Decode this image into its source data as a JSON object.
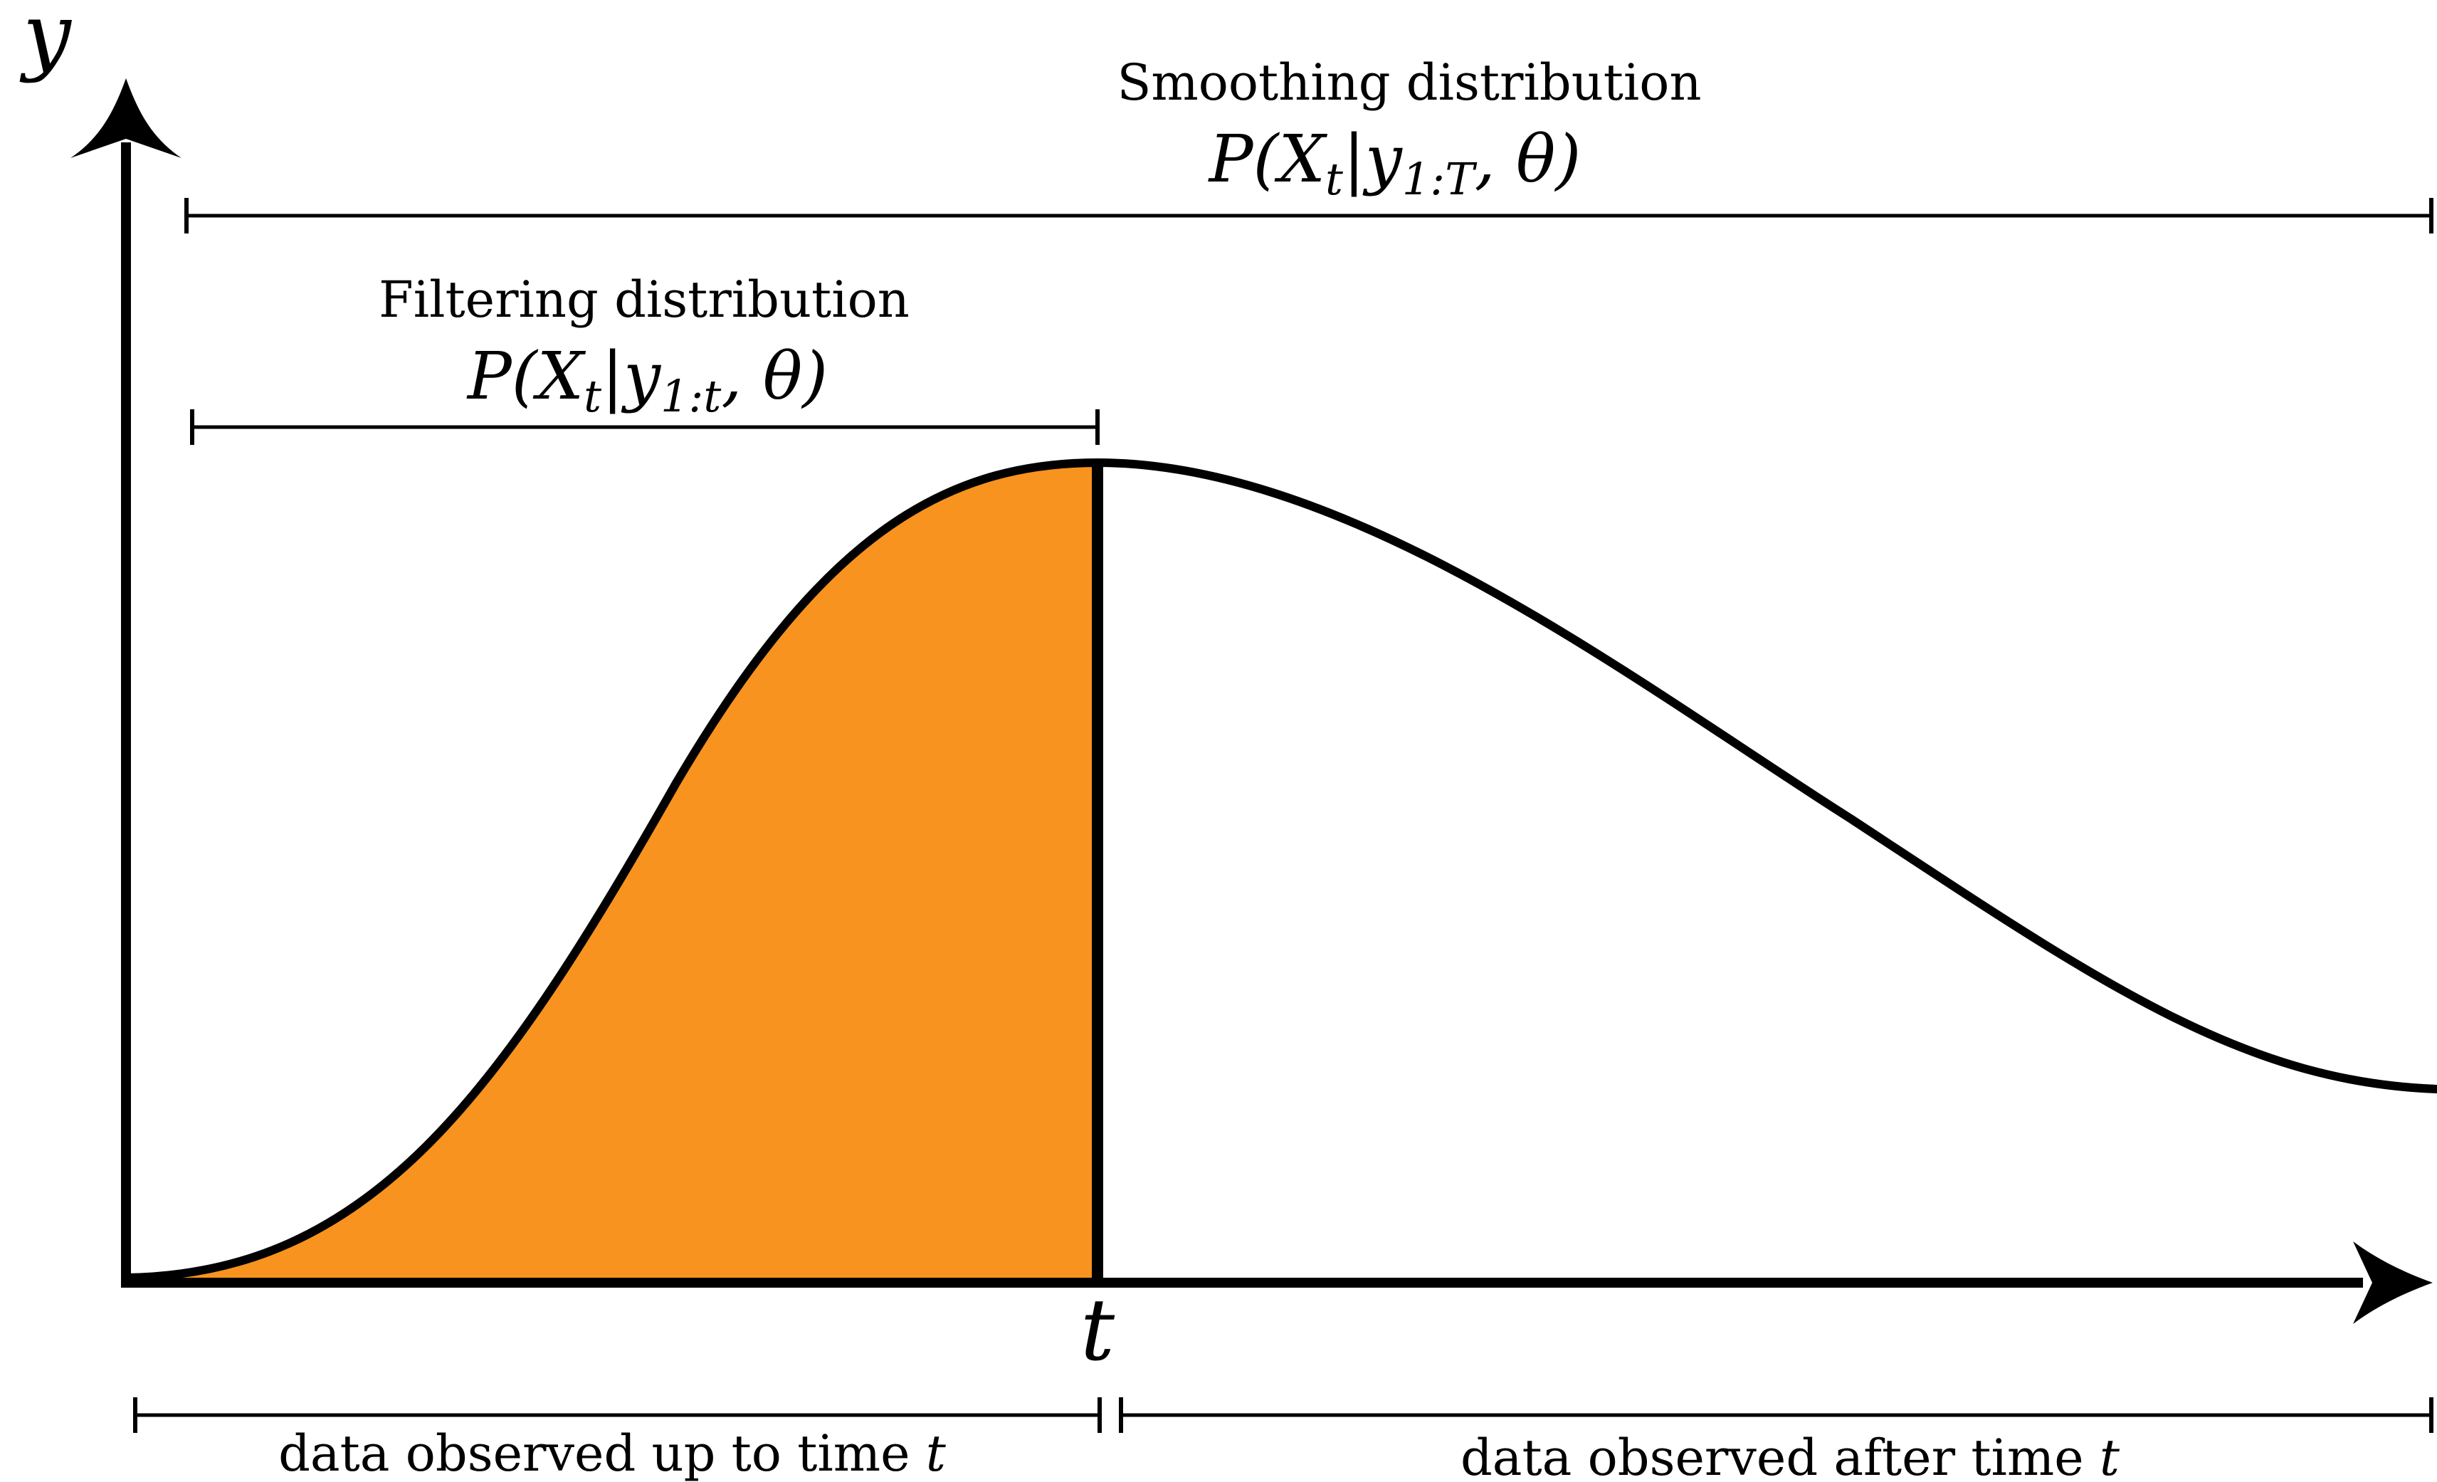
{
  "axes": {
    "y_label": "y",
    "x_tick_label": "t"
  },
  "smoothing": {
    "title": "Smoothing distribution",
    "formula": {
      "open": "P(X",
      "sub": "t",
      "bar": "|y",
      "sub2": "1:T",
      "close": ", θ)"
    }
  },
  "filtering": {
    "title": "Filtering distribution",
    "formula": {
      "open": "P(X",
      "sub": "t",
      "bar": "|y",
      "sub2": "1:t",
      "close": ", θ)"
    }
  },
  "bottom": {
    "left_text": "data observed up to time ",
    "left_var": "t",
    "right_text": "data observed after time ",
    "right_var": "t"
  },
  "colors": {
    "fill": "#F7931E",
    "ink": "#000000"
  }
}
